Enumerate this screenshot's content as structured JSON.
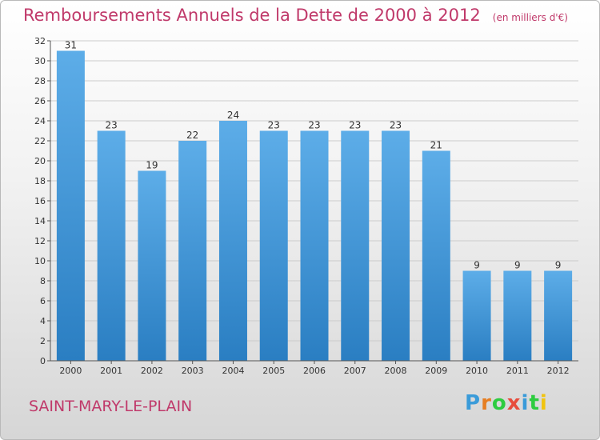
{
  "header": {
    "title": "Remboursements Annuels de la Dette de 2000 à 2012",
    "subtitle": "(en milliers d'€)"
  },
  "footer": {
    "commune": "SAINT-MARY-LE-PLAIN",
    "logo_letters": [
      {
        "char": "P",
        "color": "#3a9bd9"
      },
      {
        "char": "r",
        "color": "#e67e22"
      },
      {
        "char": "o",
        "color": "#2ecc40"
      },
      {
        "char": "x",
        "color": "#e74c3c"
      },
      {
        "char": "i",
        "color": "#3a9bd9"
      },
      {
        "char": "t",
        "color": "#2ecc40"
      },
      {
        "char": "i",
        "color": "#f1c40f"
      }
    ]
  },
  "colors": {
    "bar_top": "#5dade8",
    "bar_bottom": "#2a7ec2",
    "grid": "#cccccc",
    "title": "#c0396a"
  },
  "chart_data": {
    "type": "bar",
    "title": "Remboursements Annuels de la Dette de 2000 à 2012",
    "subtitle": "(en milliers d'€)",
    "categories": [
      "2000",
      "2001",
      "2002",
      "2003",
      "2004",
      "2005",
      "2006",
      "2007",
      "2008",
      "2009",
      "2010",
      "2011",
      "2012"
    ],
    "values": [
      31,
      23,
      19,
      22,
      24,
      23,
      23,
      23,
      23,
      21,
      9,
      9,
      9
    ],
    "ylim": [
      0,
      32
    ],
    "yticks": [
      0,
      2,
      4,
      6,
      8,
      10,
      12,
      14,
      16,
      18,
      20,
      22,
      24,
      26,
      28,
      30,
      32
    ],
    "grid": true,
    "legend": "none"
  }
}
